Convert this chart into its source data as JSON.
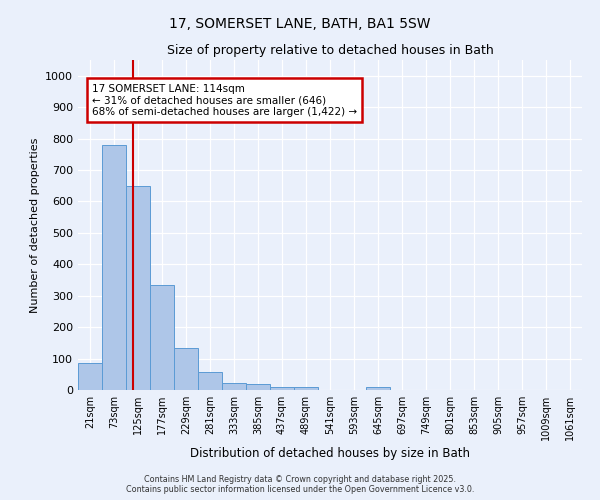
{
  "title_line1": "17, SOMERSET LANE, BATH, BA1 5SW",
  "title_line2": "Size of property relative to detached houses in Bath",
  "xlabel": "Distribution of detached houses by size in Bath",
  "ylabel": "Number of detached properties",
  "bin_labels": [
    "21sqm",
    "73sqm",
    "125sqm",
    "177sqm",
    "229sqm",
    "281sqm",
    "333sqm",
    "385sqm",
    "437sqm",
    "489sqm",
    "541sqm",
    "593sqm",
    "645sqm",
    "697sqm",
    "749sqm",
    "801sqm",
    "853sqm",
    "905sqm",
    "957sqm",
    "1009sqm",
    "1061sqm"
  ],
  "bar_heights": [
    85,
    780,
    648,
    335,
    135,
    58,
    22,
    18,
    9,
    8,
    0,
    0,
    10,
    0,
    0,
    0,
    0,
    0,
    0,
    0,
    0
  ],
  "bar_color": "#aec6e8",
  "bar_edge_color": "#5b9bd5",
  "background_color": "#eaf0fb",
  "grid_color": "#ffffff",
  "annotation_text": "17 SOMERSET LANE: 114sqm\n← 31% of detached houses are smaller (646)\n68% of semi-detached houses are larger (1,422) →",
  "annotation_box_color": "#ffffff",
  "annotation_box_edge": "#cc0000",
  "ylim": [
    0,
    1050
  ],
  "yticks": [
    0,
    100,
    200,
    300,
    400,
    500,
    600,
    700,
    800,
    900,
    1000
  ],
  "footer_line1": "Contains HM Land Registry data © Crown copyright and database right 2025.",
  "footer_line2": "Contains public sector information licensed under the Open Government Licence v3.0."
}
